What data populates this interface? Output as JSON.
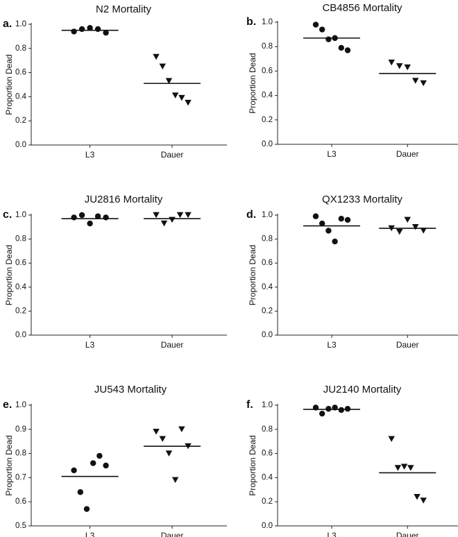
{
  "chart_data": [
    {
      "type": "scatter",
      "panel_label": "a.",
      "title": "N2 Mortality",
      "ylabel": "Proportion Dead",
      "xlabel": "",
      "categories": [
        "L3",
        "Dauer"
      ],
      "ylim": [
        0.0,
        1.0
      ],
      "yticks": [
        "0.0",
        "0.2",
        "0.4",
        "0.6",
        "0.8",
        "1.0"
      ],
      "series": [
        {
          "name": "L3",
          "marker": "circle",
          "values": [
            0.94,
            0.96,
            0.97,
            0.96,
            0.93
          ],
          "mean": 0.95
        },
        {
          "name": "Dauer",
          "marker": "triangle-down",
          "values": [
            0.73,
            0.65,
            0.53,
            0.41,
            0.39,
            0.35
          ],
          "mean": 0.51
        }
      ]
    },
    {
      "type": "scatter",
      "panel_label": "b.",
      "title": "CB4856 Mortality",
      "ylabel": "Proportion Dead",
      "xlabel": "",
      "categories": [
        "L3",
        "Dauer"
      ],
      "ylim": [
        0.0,
        1.0
      ],
      "yticks": [
        "0.0",
        "0.2",
        "0.4",
        "0.6",
        "0.8",
        "1.0"
      ],
      "series": [
        {
          "name": "L3",
          "marker": "circle",
          "values": [
            0.98,
            0.94,
            0.86,
            0.87,
            0.79,
            0.77
          ],
          "mean": 0.87
        },
        {
          "name": "Dauer",
          "marker": "triangle-down",
          "values": [
            0.67,
            0.64,
            0.63,
            0.52,
            0.5
          ],
          "mean": 0.58
        }
      ]
    },
    {
      "type": "scatter",
      "panel_label": "c.",
      "title": "JU2816 Mortality",
      "ylabel": "Proportion Dead",
      "xlabel": "",
      "categories": [
        "L3",
        "Dauer"
      ],
      "ylim": [
        0.0,
        1.0
      ],
      "yticks": [
        "0.0",
        "0.2",
        "0.4",
        "0.6",
        "0.8",
        "1.0"
      ],
      "series": [
        {
          "name": "L3",
          "marker": "circle",
          "values": [
            0.98,
            1.0,
            0.93,
            0.99,
            0.98
          ],
          "mean": 0.97
        },
        {
          "name": "Dauer",
          "marker": "triangle-down",
          "values": [
            1.0,
            0.93,
            0.96,
            1.0,
            1.0
          ],
          "mean": 0.97
        }
      ]
    },
    {
      "type": "scatter",
      "panel_label": "d.",
      "title": "QX1233 Mortality",
      "ylabel": "Proportion Dead",
      "xlabel": "",
      "categories": [
        "L3",
        "Dauer"
      ],
      "ylim": [
        0.0,
        1.0
      ],
      "yticks": [
        "0.0",
        "0.2",
        "0.4",
        "0.6",
        "0.8",
        "1.0"
      ],
      "series": [
        {
          "name": "L3",
          "marker": "circle",
          "values": [
            0.99,
            0.93,
            0.87,
            0.78,
            0.97,
            0.96
          ],
          "mean": 0.91
        },
        {
          "name": "Dauer",
          "marker": "triangle-down",
          "values": [
            0.89,
            0.86,
            0.96,
            0.9,
            0.87
          ],
          "mean": 0.89
        }
      ]
    },
    {
      "type": "scatter",
      "panel_label": "e.",
      "title": "JU543 Mortality",
      "ylabel": "Proportion Dead",
      "xlabel": "",
      "categories": [
        "L3",
        "Dauer"
      ],
      "ylim": [
        0.5,
        1.0
      ],
      "yticks": [
        "0.5",
        "0.6",
        "0.7",
        "0.8",
        "0.9",
        "1.0"
      ],
      "series": [
        {
          "name": "L3",
          "marker": "circle",
          "values": [
            0.73,
            0.64,
            0.57,
            0.76,
            0.79,
            0.75
          ],
          "mean": 0.705
        },
        {
          "name": "Dauer",
          "marker": "triangle-down",
          "values": [
            0.89,
            0.86,
            0.8,
            0.69,
            0.9,
            0.83
          ],
          "mean": 0.83
        }
      ]
    },
    {
      "type": "scatter",
      "panel_label": "f.",
      "title": "JU2140 Mortality",
      "ylabel": "Proportion Dead",
      "xlabel": "",
      "categories": [
        "L3",
        "Dauer"
      ],
      "ylim": [
        0.0,
        1.0
      ],
      "yticks": [
        "0.0",
        "0.2",
        "0.4",
        "0.6",
        "0.8",
        "1.0"
      ],
      "series": [
        {
          "name": "L3",
          "marker": "circle",
          "values": [
            0.98,
            0.93,
            0.97,
            0.98,
            0.96,
            0.97
          ],
          "mean": 0.965
        },
        {
          "name": "Dauer",
          "marker": "triangle-down",
          "values": [
            0.72,
            0.48,
            0.49,
            0.48,
            0.24,
            0.21
          ],
          "mean": 0.44
        }
      ]
    }
  ]
}
